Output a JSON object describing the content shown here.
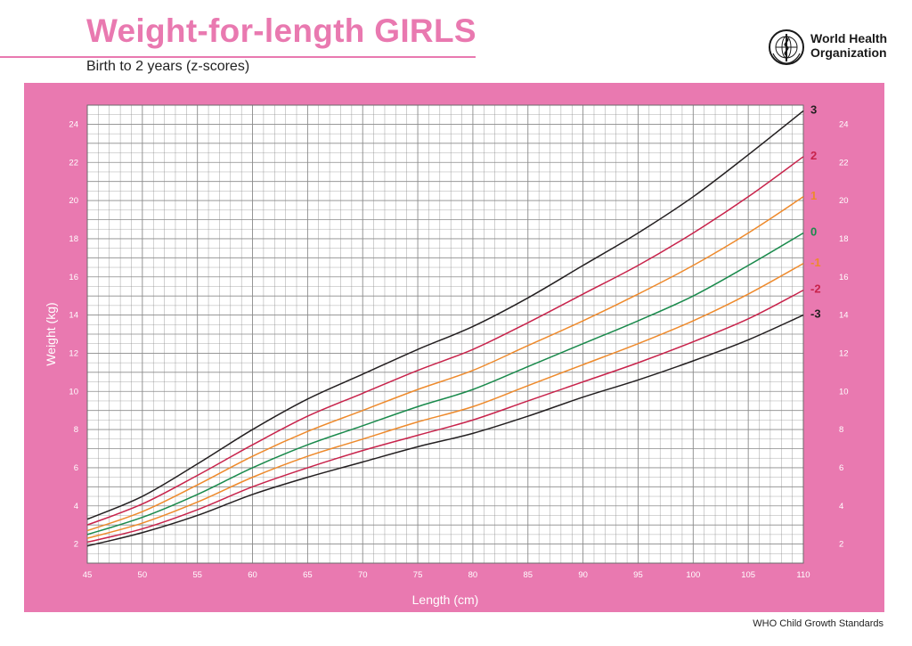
{
  "header": {
    "title": "Weight-for-length GIRLS",
    "subtitle": "Birth to 2 years (z-scores)",
    "org_line1": "World Health",
    "org_line2": "Organization"
  },
  "footer": {
    "text": "WHO Child Growth Standards"
  },
  "colors": {
    "pink": "#e979b0",
    "grid": "#8a8a8a",
    "z3": "#231f20",
    "z2": "#c8234b",
    "z1": "#ee8a2c",
    "z0": "#1a8a4c"
  },
  "chart_data": {
    "type": "line",
    "title": "Weight-for-length GIRLS",
    "subtitle": "Birth to 2 years (z-scores)",
    "xlabel": "Length (cm)",
    "ylabel": "Weight (kg)",
    "xlim": [
      45,
      110
    ],
    "ylim": [
      1,
      25
    ],
    "x_ticks": [
      45,
      50,
      55,
      60,
      65,
      70,
      75,
      80,
      85,
      90,
      95,
      100,
      105,
      110
    ],
    "y_ticks": [
      2,
      4,
      6,
      8,
      10,
      12,
      14,
      16,
      18,
      20,
      22,
      24
    ],
    "grid": true,
    "x": [
      45,
      50,
      55,
      60,
      65,
      70,
      75,
      80,
      85,
      90,
      95,
      100,
      105,
      110
    ],
    "series": [
      {
        "name": "3",
        "label": "3",
        "color_key": "z3",
        "values": [
          3.3,
          4.5,
          6.2,
          8.0,
          9.6,
          10.9,
          12.2,
          13.4,
          14.9,
          16.6,
          18.3,
          20.2,
          22.4,
          24.7
        ]
      },
      {
        "name": "2",
        "label": "2",
        "color_key": "z2",
        "values": [
          3.0,
          4.1,
          5.6,
          7.2,
          8.7,
          9.9,
          11.1,
          12.2,
          13.6,
          15.1,
          16.6,
          18.3,
          20.2,
          22.3
        ]
      },
      {
        "name": "1",
        "label": "1",
        "color_key": "z1",
        "values": [
          2.7,
          3.7,
          5.1,
          6.6,
          7.9,
          9.0,
          10.1,
          11.1,
          12.4,
          13.7,
          15.1,
          16.6,
          18.3,
          20.2
        ]
      },
      {
        "name": "0",
        "label": "0",
        "color_key": "z0",
        "values": [
          2.5,
          3.4,
          4.6,
          6.0,
          7.2,
          8.2,
          9.2,
          10.1,
          11.3,
          12.5,
          13.7,
          15.0,
          16.6,
          18.3
        ]
      },
      {
        "name": "-1",
        "label": "-1",
        "color_key": "z1",
        "values": [
          2.3,
          3.1,
          4.2,
          5.5,
          6.6,
          7.5,
          8.4,
          9.2,
          10.3,
          11.4,
          12.5,
          13.7,
          15.1,
          16.7
        ]
      },
      {
        "name": "-2",
        "label": "-2",
        "color_key": "z2",
        "values": [
          2.1,
          2.8,
          3.8,
          5.0,
          6.0,
          6.9,
          7.7,
          8.5,
          9.5,
          10.5,
          11.5,
          12.6,
          13.8,
          15.3
        ]
      },
      {
        "name": "-3",
        "label": "-3",
        "color_key": "z3",
        "values": [
          1.9,
          2.6,
          3.5,
          4.6,
          5.5,
          6.3,
          7.1,
          7.8,
          8.7,
          9.7,
          10.6,
          11.6,
          12.7,
          14.0
        ]
      }
    ]
  }
}
